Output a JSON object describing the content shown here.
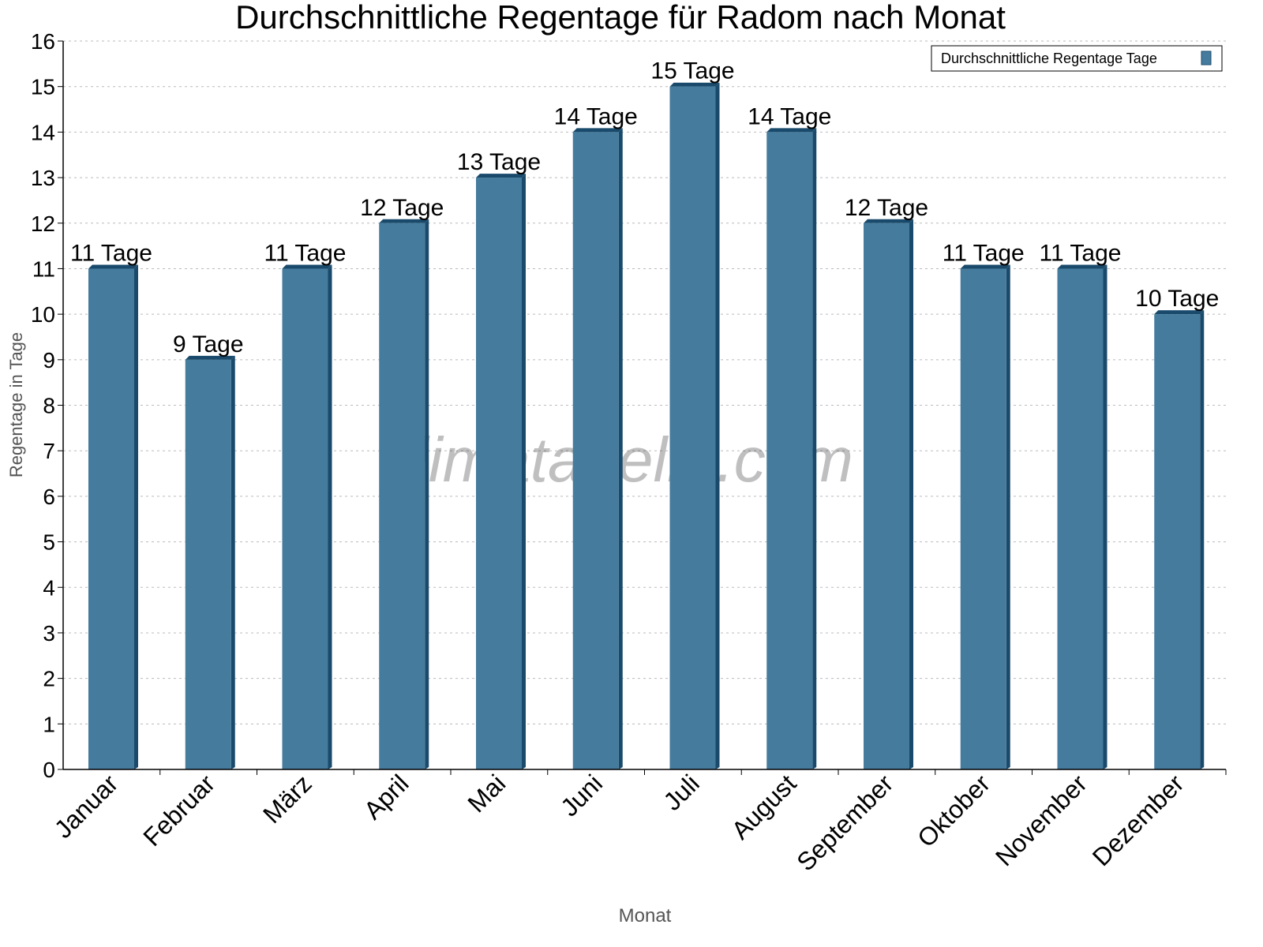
{
  "chart_data": {
    "type": "bar",
    "title": "Durchschnittliche Regentage für Radom nach Monat",
    "xlabel": "Monat",
    "ylabel": "Regentage in Tage",
    "ylim": [
      0,
      16
    ],
    "yticks": [
      "0",
      "1",
      "2",
      "3",
      "4",
      "5",
      "6",
      "7",
      "8",
      "9",
      "10",
      "11",
      "12",
      "13",
      "14",
      "15",
      "16"
    ],
    "grid": true,
    "legend_position": "top-right",
    "categories": [
      "Januar",
      "Februar",
      "März",
      "April",
      "Mai",
      "Juni",
      "Juli",
      "August",
      "September",
      "Oktober",
      "November",
      "Dezember"
    ],
    "series": [
      {
        "name": "Durchschnittliche Regentage Tage",
        "values": [
          11,
          9,
          11,
          12,
          13,
          14,
          15,
          14,
          12,
          11,
          11,
          10
        ],
        "color": "#457b9d",
        "shade_color": "#1a4a6b"
      }
    ],
    "data_labels": [
      "11 Tage",
      "9 Tage",
      "11 Tage",
      "12 Tage",
      "13 Tage",
      "14 Tage",
      "15 Tage",
      "14 Tage",
      "12 Tage",
      "11 Tage",
      "11 Tage",
      "10 Tage"
    ],
    "watermark": "klimatabelle.com"
  }
}
